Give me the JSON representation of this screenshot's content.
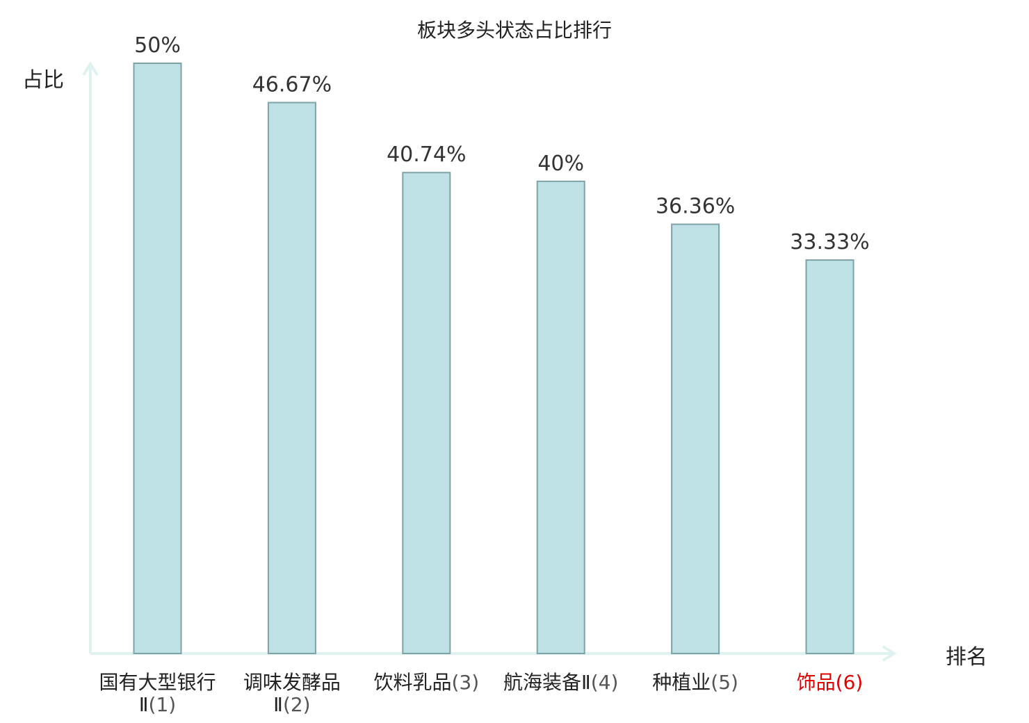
{
  "chart_data": {
    "type": "bar",
    "title": "板块多头状态占比排行",
    "ylabel": "占比",
    "xlabel": "排名",
    "categories": [
      {
        "name": "国有大型银行Ⅱ",
        "rank": "(1)",
        "highlight": false
      },
      {
        "name": "调味发酵品Ⅱ",
        "rank": "(2)",
        "highlight": false
      },
      {
        "name": "饮料乳品",
        "rank": "(3)",
        "highlight": false
      },
      {
        "name": "航海装备Ⅱ",
        "rank": "(4)",
        "highlight": false
      },
      {
        "name": "种植业",
        "rank": "(5)",
        "highlight": false
      },
      {
        "name": "饰品",
        "rank": "(6)",
        "highlight": true
      }
    ],
    "values": [
      50,
      46.67,
      40.74,
      40,
      36.36,
      33.33
    ],
    "value_labels": [
      "50%",
      "46.67%",
      "40.74%",
      "40%",
      "36.36%",
      "33.33%"
    ],
    "ylim": [
      0,
      50
    ],
    "grid": false,
    "colors": {
      "bar_fill": "#bde1e4",
      "bar_stroke": "#7fa2a6",
      "axis": "#dff2ef",
      "highlight": "#e00000"
    }
  }
}
